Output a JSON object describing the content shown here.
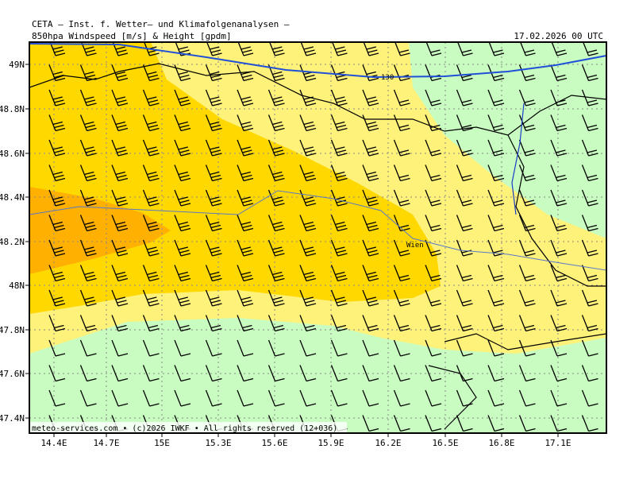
{
  "header": {
    "title": "CETA – Inst. f. Wetter– und Klimafolgenanalysen –",
    "subtitle": "850hpa Windspeed [m/s] & Height [gpdm]",
    "valid_time": "17.02.2026 00 UTC"
  },
  "map": {
    "lon_labels": [
      "14.4E",
      "14.7E",
      "15E",
      "15.3E",
      "15.6E",
      "15.9E",
      "16.2E",
      "16.5E",
      "16.8E",
      "17.1E"
    ],
    "lat_labels": [
      "49N",
      "48.8N",
      "48.6N",
      "48.4N",
      "48.2N",
      "48N",
      "47.8N",
      "47.6N",
      "47.4N"
    ],
    "contour_label": "130",
    "place_label": "Wien"
  },
  "footer": "meteo-services.com • (c)2026 IWKF • All rights reserved (12+036)"
}
